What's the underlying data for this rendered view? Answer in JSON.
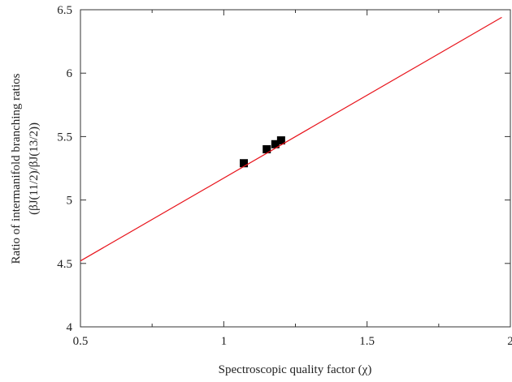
{
  "chart_data": {
    "type": "scatter",
    "x_label": "Spectroscopic quality factor (χ)",
    "y_label": [
      "Ratio of intermanifold branching ratios",
      "(βJ(11/2)/βJ(13/2))"
    ],
    "xlim": [
      0.5,
      2
    ],
    "xticks": [
      0.5,
      1,
      1.5,
      2
    ],
    "xminorticks": [
      0.75,
      1.25,
      1.75
    ],
    "ylim": [
      4,
      6.5
    ],
    "yticks": [
      4,
      4.5,
      5,
      5.5,
      6,
      6.5
    ],
    "series": [
      {
        "mode": "markers",
        "color": "#000000",
        "x": [
          1.07,
          1.15,
          1.18,
          1.2
        ],
        "values": [
          5.29,
          5.4,
          5.44,
          5.47
        ]
      },
      {
        "mode": "line",
        "color": "#e8141c",
        "x": [
          0.5,
          1.97
        ],
        "values": [
          4.52,
          6.44
        ]
      }
    ]
  }
}
